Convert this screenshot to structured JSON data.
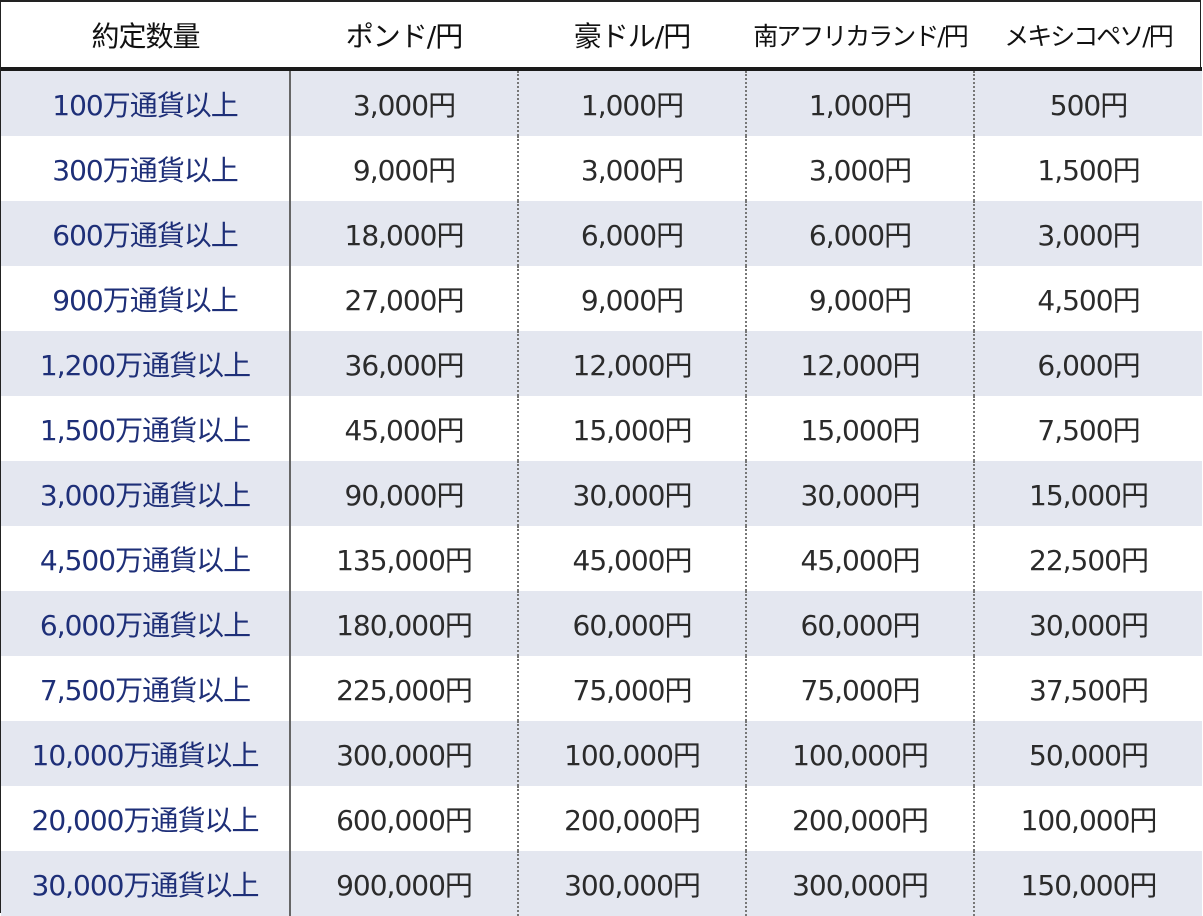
{
  "table": {
    "headers": [
      "約定数量",
      "ポンド/円",
      "豪ドル/円",
      "南アフリカランド/円",
      "メキシコペソ/円"
    ],
    "rows": [
      [
        "100万通貨以上",
        "3,000円",
        "1,000円",
        "1,000円",
        "500円"
      ],
      [
        "300万通貨以上",
        "9,000円",
        "3,000円",
        "3,000円",
        "1,500円"
      ],
      [
        "600万通貨以上",
        "18,000円",
        "6,000円",
        "6,000円",
        "3,000円"
      ],
      [
        "900万通貨以上",
        "27,000円",
        "9,000円",
        "9,000円",
        "4,500円"
      ],
      [
        "1,200万通貨以上",
        "36,000円",
        "12,000円",
        "12,000円",
        "6,000円"
      ],
      [
        "1,500万通貨以上",
        "45,000円",
        "15,000円",
        "15,000円",
        "7,500円"
      ],
      [
        "3,000万通貨以上",
        "90,000円",
        "30,000円",
        "30,000円",
        "15,000円"
      ],
      [
        "4,500万通貨以上",
        "135,000円",
        "45,000円",
        "45,000円",
        "22,500円"
      ],
      [
        "6,000万通貨以上",
        "180,000円",
        "60,000円",
        "60,000円",
        "30,000円"
      ],
      [
        "7,500万通貨以上",
        "225,000円",
        "75,000円",
        "75,000円",
        "37,500円"
      ],
      [
        "10,000万通貨以上",
        "300,000円",
        "100,000円",
        "100,000円",
        "50,000円"
      ],
      [
        "20,000万通貨以上",
        "600,000円",
        "200,000円",
        "200,000円",
        "100,000円"
      ],
      [
        "30,000万通貨以上",
        "900,000円",
        "300,000円",
        "300,000円",
        "150,000円"
      ]
    ]
  },
  "colors": {
    "label_text": "#1e2f78",
    "value_text": "#2b2b2b",
    "stripe": "#e4e7f0"
  }
}
